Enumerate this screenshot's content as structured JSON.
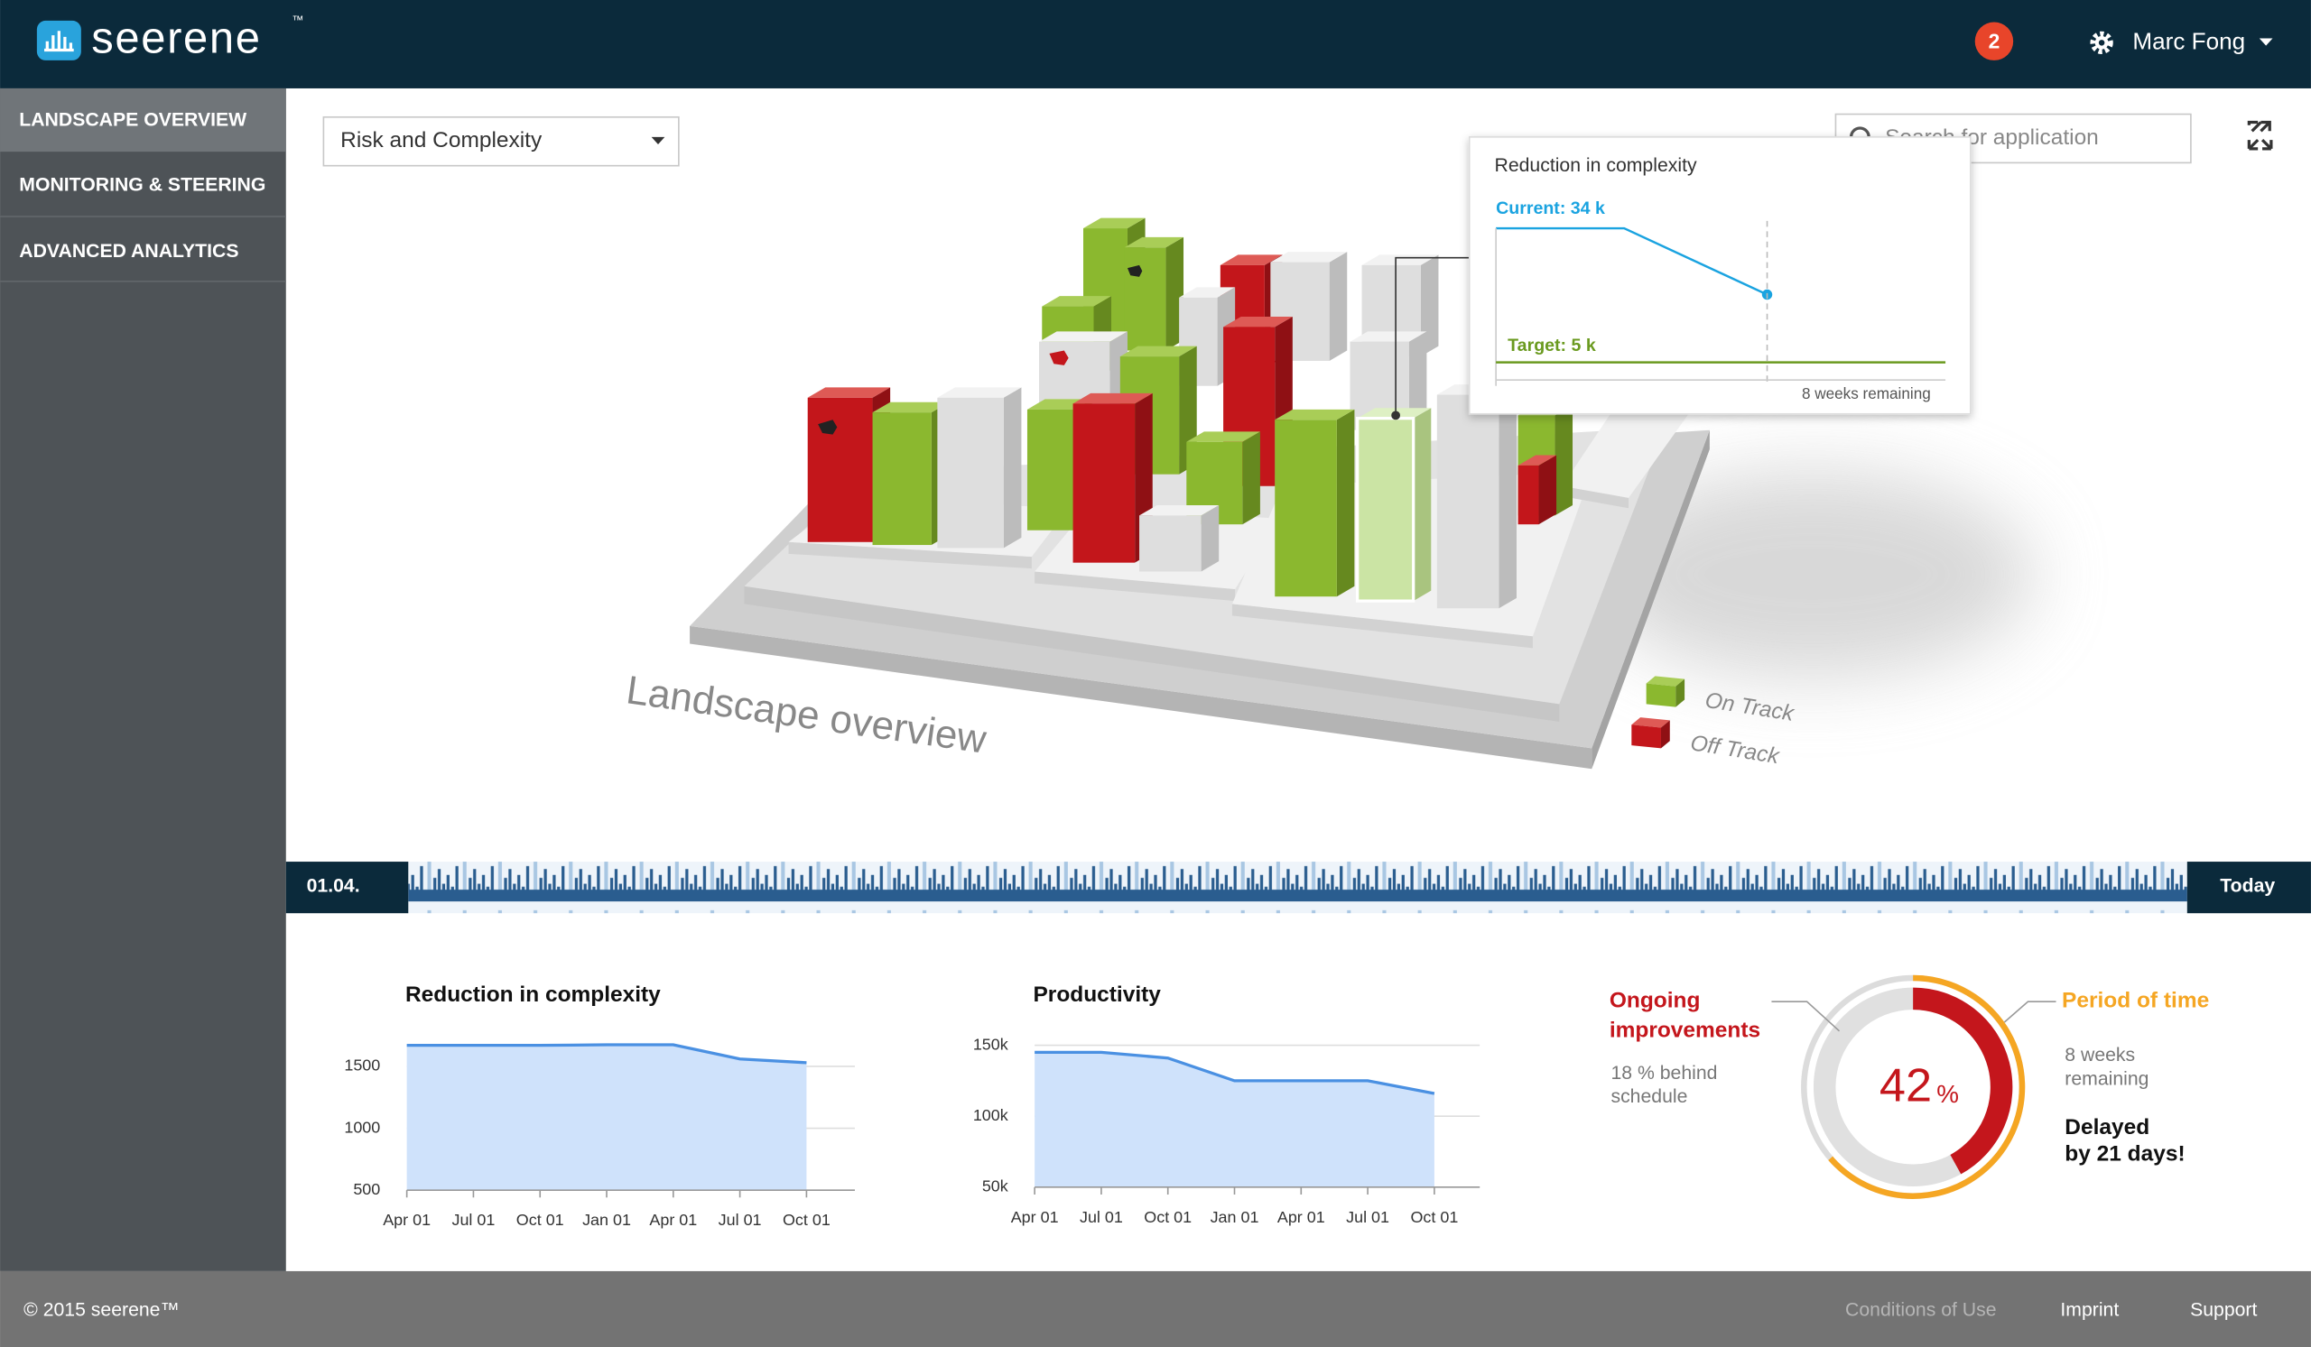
{
  "header": {
    "logo": "seerene",
    "trademark": "™",
    "notifications": "2",
    "user": "Marc Fong"
  },
  "nav": [
    "LANDSCAPE OVERVIEW",
    "MONITORING & STEERING",
    "ADVANCED ANALYTICS"
  ],
  "toolbar": {
    "dropdown": "Risk and Complexity",
    "search_placeholder": "Search for application"
  },
  "landscape": {
    "title": "Landscape overview",
    "legend": [
      "On Track",
      "Off Track"
    ]
  },
  "tooltip": {
    "title": "Reduction in complexity",
    "current": "Current: 34 k",
    "target": "Target: 5 k",
    "remaining": "8 weeks remaining"
  },
  "timeline": {
    "start": "01.04.",
    "end": "Today"
  },
  "chart_data": [
    {
      "type": "area",
      "title": "Reduction in complexity",
      "categories": [
        "Apr 01",
        "Jul 01",
        "Oct 01",
        "Jan 01",
        "Apr 01",
        "Jul 01",
        "Oct 01"
      ],
      "values": [
        1670,
        1670,
        1670,
        1675,
        1675,
        1560,
        1530
      ],
      "color": "#4a90e2",
      "ylim": [
        500,
        1750
      ],
      "yticks": [
        500,
        1000,
        1500
      ],
      "grid": true
    },
    {
      "type": "area",
      "title": "Productivity",
      "categories": [
        "Apr 01",
        "Jul 01",
        "Oct 01",
        "Jan 01",
        "Apr 01",
        "Jul 01",
        "Oct 01"
      ],
      "values": [
        145000,
        145000,
        141000,
        125000,
        125000,
        125000,
        116000
      ],
      "color": "#4a90e2",
      "ylim": [
        50000,
        160000
      ],
      "yticks": [
        {
          "value": 50000,
          "label": "50k"
        },
        {
          "value": 100000,
          "label": "100k"
        },
        {
          "value": 150000,
          "label": "150k"
        }
      ],
      "grid": true
    },
    {
      "type": "gauge",
      "value": 42,
      "unit": "%",
      "color": "#c4161c",
      "left_title": [
        "Ongoing",
        "improvements"
      ],
      "left_note": [
        "18 % behind",
        "schedule"
      ],
      "right_title": "Period of time",
      "right_note": [
        "8 weeks",
        "remaining"
      ],
      "right_alert": [
        "Delayed",
        "by 21 days!"
      ]
    }
  ],
  "footer": {
    "copyright": "© 2015  seerene™",
    "links": [
      "Conditions of Use",
      "Imprint",
      "Support"
    ]
  }
}
